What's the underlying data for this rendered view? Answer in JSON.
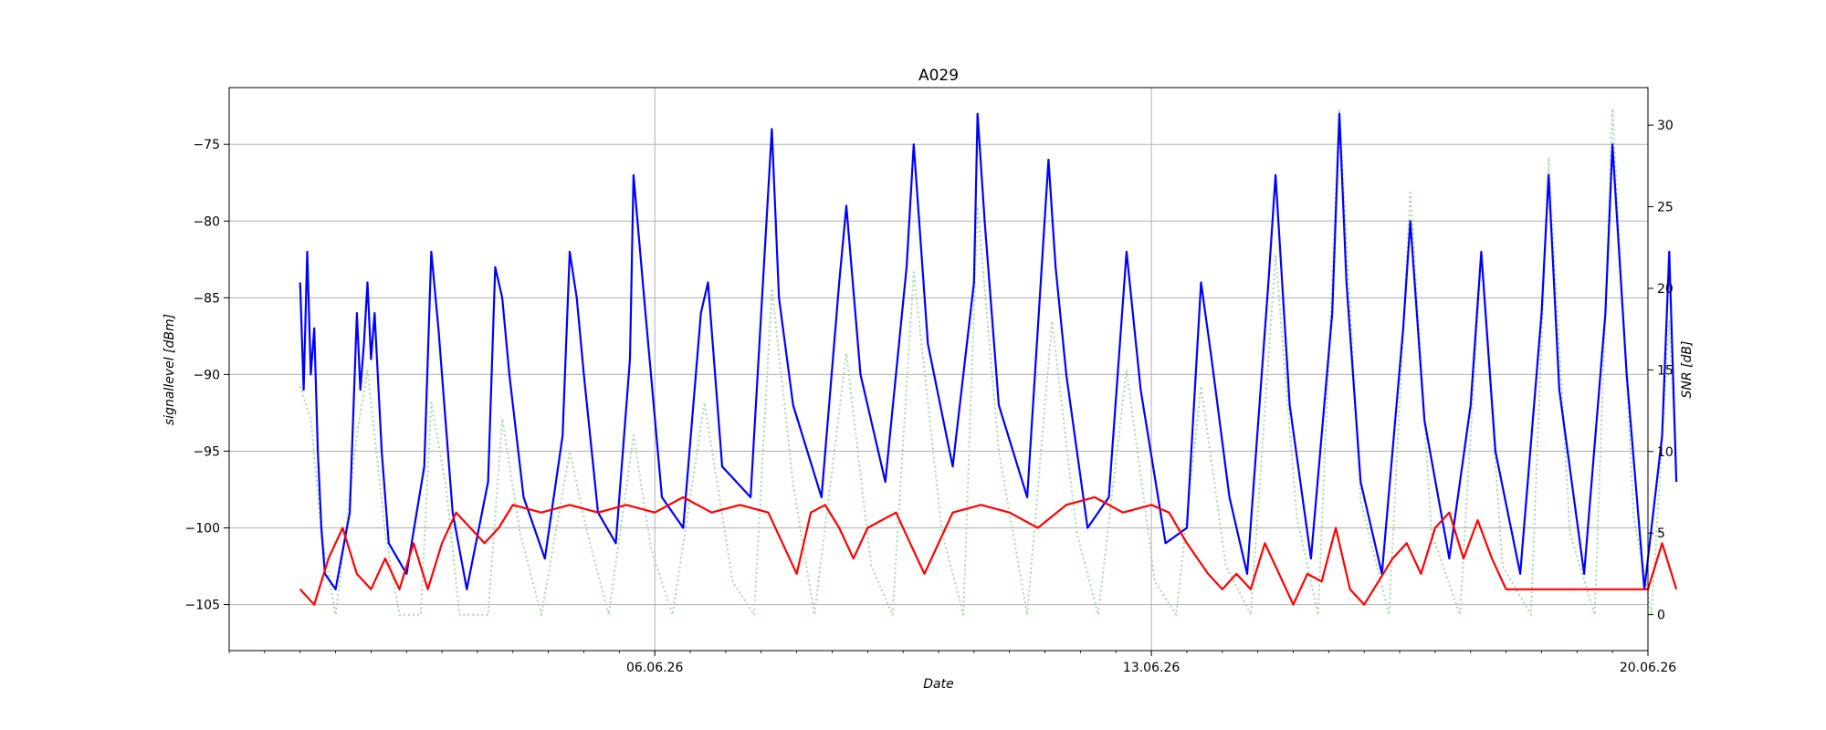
{
  "chart_data": {
    "type": "line",
    "title": "A029",
    "xlabel": "Date",
    "ylabel": "signallevel [dBm]",
    "y2label": "SNR [dB]",
    "x_start": "2026-06-01",
    "x_end": "2026-06-20",
    "xticks": [
      {
        "value": "2026-06-06",
        "label": "06.06.26"
      },
      {
        "value": "2026-06-13",
        "label": "13.06.26"
      },
      {
        "value": "2026-06-20",
        "label": "20.06.26"
      }
    ],
    "xlim": [
      "2026-05-31",
      "2026-06-20"
    ],
    "ylim": [
      -108,
      -71.3
    ],
    "y2lim": [
      -2.2,
      32.3
    ],
    "yticks": [
      -75,
      -80,
      -85,
      -90,
      -95,
      -100,
      -105
    ],
    "y2ticks": [
      30,
      25,
      20,
      15,
      10,
      5,
      0
    ],
    "grid": true,
    "series": [
      {
        "axis": "left",
        "style": "solid",
        "color": "#0000ff",
        "points": [
          [
            "2026-06-01 00:00",
            -84
          ],
          [
            "2026-06-01 01:12",
            -91
          ],
          [
            "2026-06-01 02:24",
            -82
          ],
          [
            "2026-06-01 03:36",
            -90
          ],
          [
            "2026-06-01 04:48",
            -87
          ],
          [
            "2026-06-01 06:00",
            -95
          ],
          [
            "2026-06-01 07:12",
            -100
          ],
          [
            "2026-06-01 08:24",
            -103
          ],
          [
            "2026-06-01 12:00",
            -104
          ],
          [
            "2026-06-01 16:48",
            -99
          ],
          [
            "2026-06-01 19:12",
            -86
          ],
          [
            "2026-06-01 20:24",
            -91
          ],
          [
            "2026-06-01 21:36",
            -88
          ],
          [
            "2026-06-01 22:48",
            -84
          ],
          [
            "2026-06-02 00:00",
            -89
          ],
          [
            "2026-06-02 01:12",
            -86
          ],
          [
            "2026-06-02 03:36",
            -95
          ],
          [
            "2026-06-02 06:00",
            -101
          ],
          [
            "2026-06-02 12:00",
            -103
          ],
          [
            "2026-06-02 18:00",
            -96
          ],
          [
            "2026-06-02 20:24",
            -82
          ],
          [
            "2026-06-02 22:48",
            -87
          ],
          [
            "2026-06-03 01:12",
            -93
          ],
          [
            "2026-06-03 03:36",
            -99
          ],
          [
            "2026-06-03 08:24",
            -104
          ],
          [
            "2026-06-03 15:36",
            -97
          ],
          [
            "2026-06-03 18:00",
            -83
          ],
          [
            "2026-06-03 20:24",
            -85
          ],
          [
            "2026-06-03 22:48",
            -90
          ],
          [
            "2026-06-04 03:36",
            -98
          ],
          [
            "2026-06-04 10:48",
            -102
          ],
          [
            "2026-06-04 16:48",
            -94
          ],
          [
            "2026-06-04 19:12",
            -82
          ],
          [
            "2026-06-04 21:36",
            -85
          ],
          [
            "2026-06-05 00:00",
            -90
          ],
          [
            "2026-06-05 04:48",
            -99
          ],
          [
            "2026-06-05 10:48",
            -101
          ],
          [
            "2026-06-05 15:36",
            -89
          ],
          [
            "2026-06-05 16:48",
            -77
          ],
          [
            "2026-06-05 20:24",
            -85
          ],
          [
            "2026-06-06 02:24",
            -98
          ],
          [
            "2026-06-06 09:36",
            -100
          ],
          [
            "2026-06-06 15:36",
            -86
          ],
          [
            "2026-06-06 18:00",
            -84
          ],
          [
            "2026-06-06 22:48",
            -96
          ],
          [
            "2026-06-07 08:24",
            -98
          ],
          [
            "2026-06-07 13:12",
            -82
          ],
          [
            "2026-06-07 15:36",
            -74
          ],
          [
            "2026-06-07 18:00",
            -85
          ],
          [
            "2026-06-07 22:48",
            -92
          ],
          [
            "2026-06-08 08:24",
            -98
          ],
          [
            "2026-06-08 14:24",
            -84
          ],
          [
            "2026-06-08 16:48",
            -79
          ],
          [
            "2026-06-08 21:36",
            -90
          ],
          [
            "2026-06-09 06:00",
            -97
          ],
          [
            "2026-06-09 13:12",
            -83
          ],
          [
            "2026-06-09 15:36",
            -75
          ],
          [
            "2026-06-09 20:24",
            -88
          ],
          [
            "2026-06-10 04:48",
            -96
          ],
          [
            "2026-06-10 12:00",
            -84
          ],
          [
            "2026-06-10 13:12",
            -73
          ],
          [
            "2026-06-10 15:36",
            -80
          ],
          [
            "2026-06-10 20:24",
            -92
          ],
          [
            "2026-06-11 06:00",
            -98
          ],
          [
            "2026-06-11 13:12",
            -76
          ],
          [
            "2026-06-11 15:36",
            -83
          ],
          [
            "2026-06-11 19:12",
            -90
          ],
          [
            "2026-06-12 02:24",
            -100
          ],
          [
            "2026-06-12 09:36",
            -98
          ],
          [
            "2026-06-12 15:36",
            -82
          ],
          [
            "2026-06-12 20:24",
            -91
          ],
          [
            "2026-06-13 04:48",
            -101
          ],
          [
            "2026-06-13 12:00",
            -100
          ],
          [
            "2026-06-13 16:48",
            -84
          ],
          [
            "2026-06-13 20:24",
            -89
          ],
          [
            "2026-06-14 02:24",
            -98
          ],
          [
            "2026-06-14 08:24",
            -103
          ],
          [
            "2026-06-14 15:36",
            -84
          ],
          [
            "2026-06-14 18:00",
            -77
          ],
          [
            "2026-06-14 22:48",
            -92
          ],
          [
            "2026-06-15 06:00",
            -102
          ],
          [
            "2026-06-15 13:12",
            -86
          ],
          [
            "2026-06-15 15:36",
            -73
          ],
          [
            "2026-06-15 18:00",
            -84
          ],
          [
            "2026-06-15 22:48",
            -97
          ],
          [
            "2026-06-16 06:00",
            -103
          ],
          [
            "2026-06-16 13:12",
            -87
          ],
          [
            "2026-06-16 15:36",
            -80
          ],
          [
            "2026-06-16 20:24",
            -93
          ],
          [
            "2026-06-17 04:48",
            -102
          ],
          [
            "2026-06-17 12:00",
            -92
          ],
          [
            "2026-06-17 15:36",
            -82
          ],
          [
            "2026-06-17 20:24",
            -95
          ],
          [
            "2026-06-18 04:48",
            -103
          ],
          [
            "2026-06-18 12:00",
            -86
          ],
          [
            "2026-06-18 14:24",
            -77
          ],
          [
            "2026-06-18 18:00",
            -91
          ],
          [
            "2026-06-19 02:24",
            -103
          ],
          [
            "2026-06-19 09:36",
            -86
          ],
          [
            "2026-06-19 12:00",
            -75
          ],
          [
            "2026-06-19 16:48",
            -90
          ],
          [
            "2026-06-19 22:48",
            -104
          ],
          [
            "2026-06-20 04:48",
            -94
          ],
          [
            "2026-06-20 07:12",
            -82
          ],
          [
            "2026-06-20 09:36",
            -97
          ]
        ]
      },
      {
        "axis": "right",
        "style": "dotted",
        "color": "#a8d8a8",
        "points": [
          [
            "2026-06-01 00:00",
            14
          ],
          [
            "2026-06-01 03:36",
            12
          ],
          [
            "2026-06-01 07:12",
            5
          ],
          [
            "2026-06-01 12:00",
            0
          ],
          [
            "2026-06-01 19:12",
            11
          ],
          [
            "2026-06-01 22:48",
            15
          ],
          [
            "2026-06-02 04:48",
            5
          ],
          [
            "2026-06-02 09:36",
            0
          ],
          [
            "2026-06-02 16:48",
            0
          ],
          [
            "2026-06-02 20:24",
            13
          ],
          [
            "2026-06-03 01:12",
            8
          ],
          [
            "2026-06-03 06:00",
            0
          ],
          [
            "2026-06-03 15:36",
            0
          ],
          [
            "2026-06-03 20:24",
            12
          ],
          [
            "2026-06-04 02:24",
            5
          ],
          [
            "2026-06-04 09:36",
            0
          ],
          [
            "2026-06-04 19:12",
            10
          ],
          [
            "2026-06-05 01:12",
            5
          ],
          [
            "2026-06-05 08:24",
            0
          ],
          [
            "2026-06-05 16:48",
            11
          ],
          [
            "2026-06-05 22:48",
            4
          ],
          [
            "2026-06-06 06:00",
            0
          ],
          [
            "2026-06-06 16:48",
            13
          ],
          [
            "2026-06-07 02:24",
            2
          ],
          [
            "2026-06-07 09:36",
            0
          ],
          [
            "2026-06-07 15:36",
            20
          ],
          [
            "2026-06-07 22:48",
            8
          ],
          [
            "2026-06-08 06:00",
            0
          ],
          [
            "2026-06-08 16:48",
            16
          ],
          [
            "2026-06-09 01:12",
            3
          ],
          [
            "2026-06-09 08:24",
            0
          ],
          [
            "2026-06-09 15:36",
            21
          ],
          [
            "2026-06-10 01:12",
            5
          ],
          [
            "2026-06-10 08:24",
            0
          ],
          [
            "2026-06-10 13:12",
            25
          ],
          [
            "2026-06-10 20:24",
            10
          ],
          [
            "2026-06-11 06:00",
            0
          ],
          [
            "2026-06-11 14:24",
            18
          ],
          [
            "2026-06-11 22:48",
            5
          ],
          [
            "2026-06-12 06:00",
            0
          ],
          [
            "2026-06-12 15:36",
            15
          ],
          [
            "2026-06-13 01:12",
            2
          ],
          [
            "2026-06-13 08:24",
            0
          ],
          [
            "2026-06-13 16:48",
            14
          ],
          [
            "2026-06-14 01:12",
            3
          ],
          [
            "2026-06-14 09:36",
            0
          ],
          [
            "2026-06-14 18:00",
            22
          ],
          [
            "2026-06-15 01:12",
            6
          ],
          [
            "2026-06-15 08:24",
            0
          ],
          [
            "2026-06-15 15:36",
            31
          ],
          [
            "2026-06-15 22:48",
            7
          ],
          [
            "2026-06-16 08:24",
            0
          ],
          [
            "2026-06-16 15:36",
            26
          ],
          [
            "2026-06-16 22:48",
            5
          ],
          [
            "2026-06-17 08:24",
            0
          ],
          [
            "2026-06-17 15:36",
            22
          ],
          [
            "2026-06-17 22:48",
            3
          ],
          [
            "2026-06-18 08:24",
            0
          ],
          [
            "2026-06-18 14:24",
            28
          ],
          [
            "2026-06-18 21:36",
            5
          ],
          [
            "2026-06-19 06:00",
            0
          ],
          [
            "2026-06-19 12:00",
            31
          ],
          [
            "2026-06-19 19:12",
            6
          ],
          [
            "2026-06-20 01:12",
            0
          ],
          [
            "2026-06-20 07:12",
            18
          ],
          [
            "2026-06-20 09:36",
            9
          ]
        ]
      },
      {
        "axis": "left",
        "style": "solid",
        "color": "#ff0000",
        "points": [
          [
            "2026-06-01 00:00",
            -104
          ],
          [
            "2026-06-01 04:48",
            -105
          ],
          [
            "2026-06-01 09:36",
            -102
          ],
          [
            "2026-06-01 14:24",
            -100
          ],
          [
            "2026-06-01 19:12",
            -103
          ],
          [
            "2026-06-02 00:00",
            -104
          ],
          [
            "2026-06-02 04:48",
            -102
          ],
          [
            "2026-06-02 09:36",
            -104
          ],
          [
            "2026-06-02 14:24",
            -101
          ],
          [
            "2026-06-02 19:12",
            -104
          ],
          [
            "2026-06-03 00:00",
            -101
          ],
          [
            "2026-06-03 04:48",
            -99
          ],
          [
            "2026-06-03 09:36",
            -100
          ],
          [
            "2026-06-03 14:24",
            -101
          ],
          [
            "2026-06-03 19:12",
            -100
          ],
          [
            "2026-06-04 00:00",
            -98.5
          ],
          [
            "2026-06-04 09:36",
            -99
          ],
          [
            "2026-06-04 19:12",
            -98.5
          ],
          [
            "2026-06-05 04:48",
            -99
          ],
          [
            "2026-06-05 14:24",
            -98.5
          ],
          [
            "2026-06-06 00:00",
            -99
          ],
          [
            "2026-06-06 09:36",
            -98
          ],
          [
            "2026-06-06 19:12",
            -99
          ],
          [
            "2026-06-07 04:48",
            -98.5
          ],
          [
            "2026-06-07 14:24",
            -99
          ],
          [
            "2026-06-07 19:12",
            -101
          ],
          [
            "2026-06-08 00:00",
            -103
          ],
          [
            "2026-06-08 04:48",
            -99
          ],
          [
            "2026-06-08 09:36",
            -98.5
          ],
          [
            "2026-06-08 14:24",
            -100
          ],
          [
            "2026-06-08 19:12",
            -102
          ],
          [
            "2026-06-09 00:00",
            -100
          ],
          [
            "2026-06-09 09:36",
            -99
          ],
          [
            "2026-06-09 14:24",
            -101
          ],
          [
            "2026-06-09 19:12",
            -103
          ],
          [
            "2026-06-10 04:48",
            -99
          ],
          [
            "2026-06-10 14:24",
            -98.5
          ],
          [
            "2026-06-11 00:00",
            -99
          ],
          [
            "2026-06-11 09:36",
            -100
          ],
          [
            "2026-06-11 19:12",
            -98.5
          ],
          [
            "2026-06-12 04:48",
            -98
          ],
          [
            "2026-06-12 14:24",
            -99
          ],
          [
            "2026-06-13 00:00",
            -98.5
          ],
          [
            "2026-06-13 06:00",
            -99
          ],
          [
            "2026-06-13 12:00",
            -101
          ],
          [
            "2026-06-13 19:12",
            -103
          ],
          [
            "2026-06-14 00:00",
            -104
          ],
          [
            "2026-06-14 04:48",
            -103
          ],
          [
            "2026-06-14 09:36",
            -104
          ],
          [
            "2026-06-14 14:24",
            -101
          ],
          [
            "2026-06-14 19:12",
            -103
          ],
          [
            "2026-06-15 00:00",
            -105
          ],
          [
            "2026-06-15 04:48",
            -103
          ],
          [
            "2026-06-15 09:36",
            -103.5
          ],
          [
            "2026-06-15 14:24",
            -100
          ],
          [
            "2026-06-15 19:12",
            -104
          ],
          [
            "2026-06-16 00:00",
            -105
          ],
          [
            "2026-06-16 09:36",
            -102
          ],
          [
            "2026-06-16 14:24",
            -101
          ],
          [
            "2026-06-16 19:12",
            -103
          ],
          [
            "2026-06-17 00:00",
            -100
          ],
          [
            "2026-06-17 04:48",
            -99
          ],
          [
            "2026-06-17 09:36",
            -102
          ],
          [
            "2026-06-17 14:24",
            -99.5
          ],
          [
            "2026-06-17 19:12",
            -102
          ],
          [
            "2026-06-18 00:00",
            -104
          ],
          [
            "2026-06-18 09:36",
            -104
          ],
          [
            "2026-06-18 19:12",
            -104
          ],
          [
            "2026-06-19 04:48",
            -104
          ],
          [
            "2026-06-19 14:24",
            -104
          ],
          [
            "2026-06-20 00:00",
            -104
          ],
          [
            "2026-06-20 04:48",
            -101
          ],
          [
            "2026-06-20 09:36",
            -104
          ]
        ]
      }
    ]
  }
}
